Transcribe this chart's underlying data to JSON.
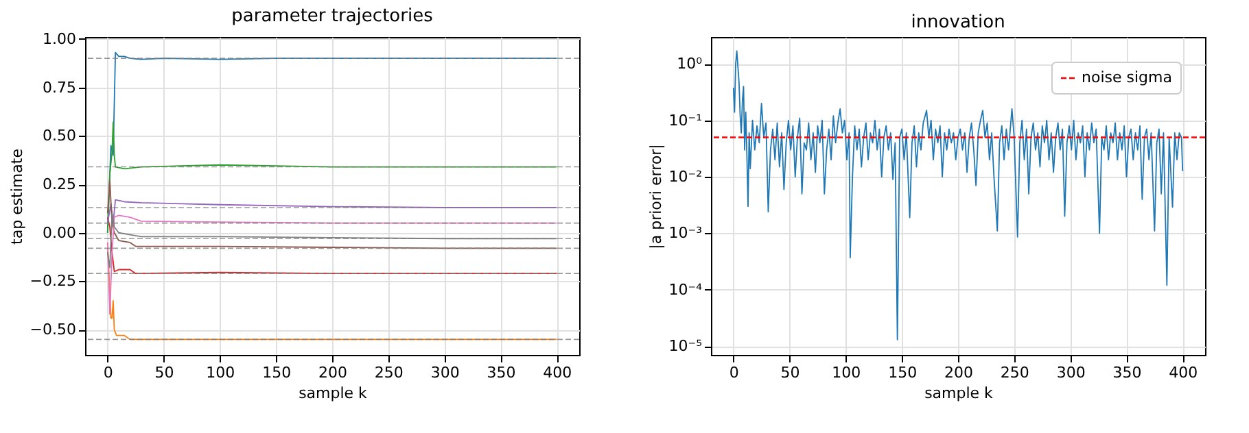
{
  "chart_data": [
    {
      "type": "line",
      "title": "parameter trajectories",
      "xlabel": "sample k",
      "ylabel": "tap estimate",
      "xlim": [
        -20,
        420
      ],
      "ylim": [
        -0.63,
        1.01
      ],
      "xticks": [
        0,
        50,
        100,
        150,
        200,
        250,
        300,
        350,
        400
      ],
      "yticks": [
        {
          "value": -0.5,
          "label": "−0.50"
        },
        {
          "value": -0.25,
          "label": "−0.25"
        },
        {
          "value": 0,
          "label": "0.00"
        },
        {
          "value": 0.25,
          "label": "0.25"
        },
        {
          "value": 0.5,
          "label": "0.50"
        },
        {
          "value": 0.75,
          "label": "0.75"
        },
        {
          "value": 1.0,
          "label": "1.00"
        }
      ],
      "grid": true,
      "legend": false,
      "line_style": "solid",
      "marker": "none",
      "series": [
        {
          "color": "#1f77b4",
          "x": [
            0,
            3,
            5,
            7,
            10,
            15,
            20,
            30,
            50,
            100,
            150,
            200,
            300,
            400
          ],
          "values": [
            0.0,
            0.45,
            0.4,
            0.93,
            0.91,
            0.91,
            0.9,
            0.895,
            0.9,
            0.895,
            0.9,
            0.9,
            0.9,
            0.9
          ]
        },
        {
          "color": "#ff7f0e",
          "x": [
            0,
            2,
            3,
            4,
            5,
            6,
            8,
            15,
            20,
            50,
            100,
            200,
            300,
            400
          ],
          "values": [
            -0.05,
            -0.3,
            -0.44,
            -0.44,
            -0.35,
            -0.5,
            -0.53,
            -0.53,
            -0.55,
            -0.55,
            -0.55,
            -0.55,
            -0.55,
            -0.55
          ]
        },
        {
          "color": "#2ca02c",
          "x": [
            0,
            2,
            4,
            5,
            6,
            7,
            15,
            30,
            100,
            150,
            200,
            300,
            400
          ],
          "values": [
            0.0,
            0.3,
            0.42,
            0.57,
            0.4,
            0.34,
            0.33,
            0.34,
            0.35,
            0.345,
            0.34,
            0.34,
            0.34
          ]
        },
        {
          "color": "#d62728",
          "x": [
            0,
            2,
            4,
            6,
            10,
            20,
            25,
            100,
            200,
            300,
            400
          ],
          "values": [
            0.08,
            0.03,
            -0.1,
            -0.2,
            -0.19,
            -0.19,
            -0.21,
            -0.205,
            -0.21,
            -0.21,
            -0.21
          ]
        },
        {
          "color": "#9467bd",
          "x": [
            0,
            3,
            5,
            7,
            15,
            30,
            100,
            200,
            300,
            400
          ],
          "values": [
            0.05,
            0.15,
            0.05,
            0.17,
            0.16,
            0.155,
            0.145,
            0.135,
            0.13,
            0.13
          ]
        },
        {
          "color": "#8c564b",
          "x": [
            0,
            2,
            4,
            6,
            10,
            20,
            25,
            100,
            200,
            300,
            400
          ],
          "values": [
            0.1,
            0.27,
            0.05,
            0.0,
            -0.04,
            -0.05,
            -0.07,
            -0.07,
            -0.075,
            -0.08,
            -0.08
          ]
        },
        {
          "color": "#e377c2",
          "x": [
            0,
            2,
            4,
            6,
            10,
            20,
            30,
            100,
            200,
            300,
            400
          ],
          "values": [
            -0.05,
            -0.42,
            -0.1,
            0.08,
            0.09,
            0.08,
            0.06,
            0.055,
            0.05,
            0.05,
            0.05
          ]
        },
        {
          "color": "#7f7f7f",
          "x": [
            0,
            2,
            4,
            6,
            10,
            20,
            30,
            100,
            200,
            300,
            400
          ],
          "values": [
            -0.1,
            -0.18,
            0.1,
            0.03,
            0.0,
            -0.01,
            -0.02,
            -0.02,
            -0.025,
            -0.03,
            -0.03
          ]
        }
      ],
      "ref_lines": [
        {
          "axis": "y",
          "value": 0.9,
          "color": "#808080",
          "line_style": "dashed"
        },
        {
          "axis": "y",
          "value": 0.34,
          "color": "#808080",
          "line_style": "dashed"
        },
        {
          "axis": "y",
          "value": 0.13,
          "color": "#808080",
          "line_style": "dashed"
        },
        {
          "axis": "y",
          "value": 0.05,
          "color": "#808080",
          "line_style": "dashed"
        },
        {
          "axis": "y",
          "value": -0.03,
          "color": "#808080",
          "line_style": "dashed"
        },
        {
          "axis": "y",
          "value": -0.08,
          "color": "#808080",
          "line_style": "dashed"
        },
        {
          "axis": "y",
          "value": -0.21,
          "color": "#808080",
          "line_style": "dashed"
        },
        {
          "axis": "y",
          "value": -0.55,
          "color": "#808080",
          "line_style": "dashed"
        }
      ]
    },
    {
      "type": "line",
      "title": "innovation",
      "xlabel": "sample k",
      "ylabel": "|a priori error|",
      "log": "y",
      "xlim": [
        -20,
        420
      ],
      "ylim": [
        7e-06,
        3
      ],
      "xticks": [
        0,
        50,
        100,
        150,
        200,
        250,
        300,
        350,
        400
      ],
      "yticks": [
        {
          "value": 1e-05,
          "label": "10⁻⁵"
        },
        {
          "value": 0.0001,
          "label": "10⁻⁴"
        },
        {
          "value": 0.001,
          "label": "10⁻³"
        },
        {
          "value": 0.01,
          "label": "10⁻²"
        },
        {
          "value": 0.1,
          "label": "10⁻¹"
        },
        {
          "value": 1,
          "label": "10⁰"
        }
      ],
      "grid": true,
      "legend": "top right",
      "line_style": "solid",
      "marker": "none",
      "series": [
        {
          "color": "#1f77b4",
          "x": [
            0,
            1,
            2,
            3,
            4,
            5,
            6,
            7,
            8,
            9,
            10,
            11,
            12,
            13,
            14,
            15,
            17,
            19,
            21,
            23,
            25,
            27,
            29,
            31,
            33,
            35,
            37,
            39,
            41,
            43,
            45,
            47,
            49,
            51,
            53,
            55,
            57,
            59,
            61,
            63,
            65,
            67,
            69,
            71,
            73,
            75,
            77,
            79,
            81,
            83,
            85,
            87,
            89,
            91,
            93,
            95,
            97,
            99,
            101,
            103,
            104,
            106,
            108,
            110,
            112,
            114,
            116,
            118,
            120,
            122,
            124,
            126,
            128,
            130,
            132,
            134,
            136,
            138,
            140,
            142,
            144,
            146,
            148,
            150,
            152,
            154,
            157,
            159,
            161,
            163,
            165,
            167,
            169,
            172,
            174,
            176,
            178,
            180,
            182,
            184,
            186,
            188,
            190,
            192,
            194,
            196,
            198,
            200,
            202,
            204,
            206,
            208,
            210,
            212,
            214,
            216,
            218,
            220,
            222,
            224,
            226,
            228,
            230,
            232,
            235,
            237,
            239,
            241,
            243,
            245,
            248,
            250,
            253,
            255,
            257,
            259,
            261,
            263,
            265,
            267,
            269,
            271,
            273,
            275,
            277,
            279,
            281,
            283,
            285,
            287,
            289,
            291,
            293,
            295,
            297,
            299,
            301,
            303,
            305,
            307,
            309,
            311,
            313,
            315,
            317,
            319,
            321,
            323,
            326,
            328,
            330,
            332,
            334,
            336,
            338,
            340,
            342,
            344,
            346,
            348,
            350,
            352,
            354,
            356,
            358,
            360,
            362,
            364,
            366,
            368,
            370,
            372,
            375,
            377,
            379,
            381,
            383,
            386,
            388,
            391,
            393,
            395,
            397,
            399,
            400
          ],
          "values": [
            0.38,
            0.14,
            1.0,
            1.7,
            0.9,
            0.46,
            0.12,
            0.06,
            0.22,
            0.4,
            0.03,
            0.14,
            0.024,
            0.003,
            0.06,
            0.014,
            0.1,
            0.03,
            0.08,
            0.04,
            0.2,
            0.05,
            0.09,
            0.0024,
            0.03,
            0.07,
            0.02,
            0.09,
            0.015,
            0.06,
            0.006,
            0.04,
            0.1,
            0.03,
            0.08,
            0.01,
            0.05,
            0.11,
            0.005,
            0.04,
            0.03,
            0.09,
            0.02,
            0.06,
            0.012,
            0.08,
            0.04,
            0.1,
            0.005,
            0.03,
            0.07,
            0.02,
            0.12,
            0.04,
            0.09,
            0.16,
            0.06,
            0.1,
            0.02,
            0.06,
            0.00037,
            0.01,
            0.08,
            0.03,
            0.07,
            0.015,
            0.05,
            0.09,
            0.02,
            0.06,
            0.04,
            0.1,
            0.03,
            0.07,
            0.01,
            0.05,
            0.08,
            0.03,
            0.06,
            0.009,
            0.04,
            1.3e-05,
            0.05,
            0.07,
            0.02,
            0.06,
            0.0019,
            0.04,
            0.08,
            0.015,
            0.06,
            0.03,
            0.09,
            0.15,
            0.05,
            0.1,
            0.02,
            0.07,
            0.04,
            0.08,
            0.01,
            0.06,
            0.03,
            0.07,
            0.04,
            0.06,
            0.02,
            0.05,
            0.07,
            0.03,
            0.06,
            0.012,
            0.05,
            0.09,
            0.03,
            0.007,
            0.06,
            0.1,
            0.15,
            0.05,
            0.09,
            0.02,
            0.06,
            0.01,
            0.0011,
            0.04,
            0.08,
            0.02,
            0.07,
            0.03,
            0.16,
            0.05,
            0.00086,
            0.04,
            0.1,
            0.02,
            0.07,
            0.005,
            0.05,
            0.09,
            0.03,
            0.06,
            0.015,
            0.08,
            0.04,
            0.1,
            0.02,
            0.06,
            0.012,
            0.05,
            0.09,
            0.03,
            0.07,
            0.002,
            0.04,
            0.08,
            0.03,
            0.1,
            0.02,
            0.06,
            0.04,
            0.08,
            0.01,
            0.06,
            0.03,
            0.09,
            0.04,
            0.07,
            0.001,
            0.05,
            0.03,
            0.08,
            0.02,
            0.06,
            0.04,
            0.09,
            0.02,
            0.06,
            0.03,
            0.08,
            0.01,
            0.05,
            0.07,
            0.02,
            0.06,
            0.03,
            0.08,
            0.004,
            0.05,
            0.07,
            0.02,
            0.06,
            0.0011,
            0.04,
            0.07,
            0.005,
            0.06,
            0.00012,
            0.05,
            0.0029,
            0.06,
            0.02,
            0.06,
            0.05,
            0.0126
          ]
        }
      ],
      "ref_lines": [
        {
          "axis": "y",
          "value": 0.05,
          "label": "noise sigma",
          "color": "#ff0000",
          "line_style": "dashed"
        }
      ]
    }
  ]
}
